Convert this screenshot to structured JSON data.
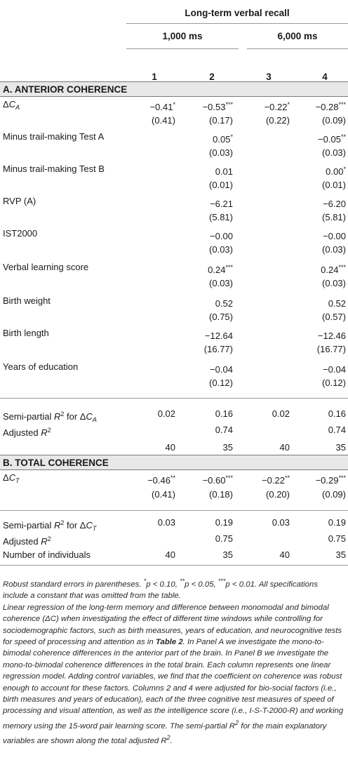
{
  "header": {
    "title": "Long-term verbal recall",
    "group1": "1,000 ms",
    "group2": "6,000 ms",
    "columns": [
      "1",
      "2",
      "3",
      "4"
    ]
  },
  "sectionA": {
    "title": "A. ANTERIOR COHERENCE",
    "delta_row": {
      "c1": "−0.41",
      "c1_stars": "*",
      "c2": "−0.53",
      "c2_stars": "***",
      "c3": "−0.22",
      "c3_stars": "*",
      "c4": "−0.28",
      "c4_stars": "***"
    },
    "delta_se": {
      "c1": "(0.41)",
      "c2": "(0.17)",
      "c3": "(0.22)",
      "c4": "(0.09)"
    },
    "rows": [
      {
        "label": "Minus trail-making Test A",
        "c2": "0.05",
        "c2_stars": "*",
        "c4": "−0.05",
        "c4_stars": "**",
        "c2_se": "(0.03)",
        "c4_se": "(0.03)"
      },
      {
        "label": "Minus trail-making Test B",
        "c2": "0.01",
        "c2_stars": "",
        "c4": "0.00",
        "c4_stars": "*",
        "c2_se": "(0.01)",
        "c4_se": "(0.01)"
      },
      {
        "label": "RVP (A)",
        "c2": "−6.21",
        "c2_stars": "",
        "c4": "−6.20",
        "c4_stars": "",
        "c2_se": "(5.81)",
        "c4_se": "(5.81)"
      },
      {
        "label": "IST2000",
        "c2": "−0.00",
        "c2_stars": "",
        "c4": "−0.00",
        "c4_stars": "",
        "c2_se": "(0.03)",
        "c4_se": "(0.03)"
      },
      {
        "label": "Verbal learning score",
        "c2": "0.24",
        "c2_stars": "***",
        "c4": "0.24",
        "c4_stars": "***",
        "c2_se": "(0.03)",
        "c4_se": "(0.03)"
      },
      {
        "label": "Birth weight",
        "c2": "0.52",
        "c2_stars": "",
        "c4": "0.52",
        "c4_stars": "",
        "c2_se": "(0.75)",
        "c4_se": "(0.57)"
      },
      {
        "label": "Birth length",
        "c2": "−12.64",
        "c2_stars": "",
        "c4": "−12.46",
        "c4_stars": "",
        "c2_se": "(16.77)",
        "c4_se": "(16.77)"
      },
      {
        "label": "Years of education",
        "c2": "−0.04",
        "c2_stars": "",
        "c4": "−0.04",
        "c4_stars": "",
        "c2_se": "(0.12)",
        "c4_se": "(0.12)"
      }
    ],
    "semi_partial": {
      "label_prefix": "Semi-partial ",
      "label_mid": " for Δ",
      "c1": "0.02",
      "c2": "0.16",
      "c3": "0.02",
      "c4": "0.16"
    },
    "adjusted": {
      "label_prefix": "Adjusted ",
      "c2": "0.74",
      "c4": "0.74"
    },
    "n": {
      "c1": "40",
      "c2": "35",
      "c3": "40",
      "c4": "35"
    }
  },
  "sectionB": {
    "title": "B. TOTAL COHERENCE",
    "delta_row": {
      "c1": "−0.46",
      "c1_stars": "**",
      "c2": "−0.60",
      "c2_stars": "***",
      "c3": "−0.22",
      "c3_stars": "**",
      "c4": "−0.29",
      "c4_stars": "***"
    },
    "delta_se": {
      "c1": "(0.41)",
      "c2": "(0.18)",
      "c3": "(0.20)",
      "c4": "(0.09)"
    },
    "semi_partial": {
      "c1": "0.03",
      "c2": "0.19",
      "c3": "0.03",
      "c4": "0.19"
    },
    "adjusted": {
      "c2": "0.75",
      "c4": "0.75"
    },
    "n": {
      "label": "Number of individuals",
      "c1": "40",
      "c2": "35",
      "c3": "40",
      "c4": "35"
    }
  },
  "symbols": {
    "delta": "Δ",
    "C": "C",
    "sub_A": "A",
    "sub_T": "T",
    "R": "R",
    "sq": "2"
  },
  "notes": {
    "line1_a": "Robust standard errors in parentheses. ",
    "s1": "*",
    "p1": "p < 0.10, ",
    "s2": "**",
    "p2": "p < 0.05, ",
    "s3": "***",
    "p3": "p < 0.01. All specifications include a constant that was omitted from the table.",
    "para2_a": "Linear regression of the long-term memory and difference between monomodal and bimodal coherence (ΔC) when investigating the effect of different time windows while controlling for sociodemographic factors, such as birth measures, years of education, and neurocognitive tests for speed of processing and attention as in ",
    "para2_table": "Table 2",
    "para2_b": ". In Panel A we investigate the mono-to-bimodal coherence differences in the anterior part of the brain. In Panel B we investigate the mono-to-bimodal coherence differences in the total brain. Each column represents one linear regression model. Adding control variables, we find that the coefficient on coherence was robust enough to account for these factors. Columns 2 and 4 were adjusted for bio-social factors (i.e., birth measures and years of education), each of the three cognitive test measures of speed of processing and visual attention, as well as the intelligence score (i.e., I-S-T-2000-R) and working memory using the 15-word pair learning score. The semi-partial R",
    "para2_sup": "2",
    "para2_c": " for the main explanatory variables are shown along the total adjusted R",
    "para2_sup2": "2",
    "para2_d": "."
  }
}
